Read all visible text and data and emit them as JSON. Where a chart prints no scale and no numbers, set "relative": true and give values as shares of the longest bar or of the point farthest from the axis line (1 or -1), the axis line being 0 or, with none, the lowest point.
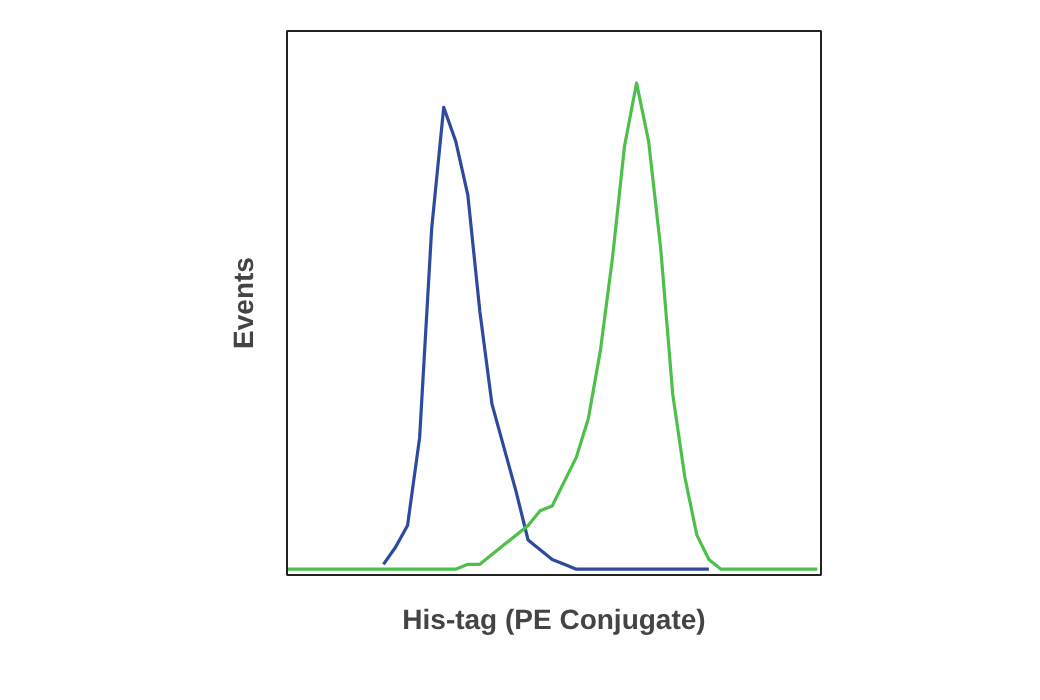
{
  "chart_data": {
    "type": "line",
    "relative": true,
    "xlabel": "His-tag (PE Conjugate)",
    "ylabel": "Events",
    "grid": false,
    "marker": "none",
    "line_style": "solid",
    "categories": [
      null,
      null,
      null,
      null,
      null,
      null,
      null,
      null,
      null,
      null,
      null,
      null,
      null,
      null,
      null,
      null,
      null,
      null,
      null,
      null,
      null,
      null,
      null,
      null,
      null,
      null,
      null,
      null,
      null,
      null,
      null,
      null,
      null,
      null,
      null,
      null,
      null,
      null,
      null,
      null,
      null,
      null,
      null,
      null,
      null
    ],
    "series": [
      {
        "color": "#2e4a9e",
        "values": [
          null,
          null,
          null,
          null,
          null,
          null,
          null,
          null,
          0.01,
          0.045,
          0.09,
          0.27,
          0.7,
          0.95,
          0.88,
          0.77,
          0.53,
          0.34,
          0.25,
          0.16,
          0.06,
          0.04,
          0.02,
          0.01,
          0,
          0,
          0,
          0,
          0,
          0,
          0,
          0,
          0,
          0,
          0,
          0,
          null,
          null,
          null,
          null,
          null,
          null,
          null,
          null,
          null
        ]
      },
      {
        "color": "#4cc04a",
        "values": [
          0,
          0,
          0,
          0,
          0,
          0,
          0,
          0,
          0,
          0,
          0,
          0,
          0,
          0,
          0,
          0.01,
          0.01,
          0.03,
          0.05,
          0.07,
          0.09,
          0.12,
          0.13,
          0.18,
          0.23,
          0.31,
          0.45,
          0.64,
          0.87,
          1.0,
          0.88,
          0.66,
          0.36,
          0.19,
          0.07,
          0.02,
          0,
          0,
          0,
          0,
          0,
          0,
          0,
          0,
          0
        ]
      }
    ]
  }
}
